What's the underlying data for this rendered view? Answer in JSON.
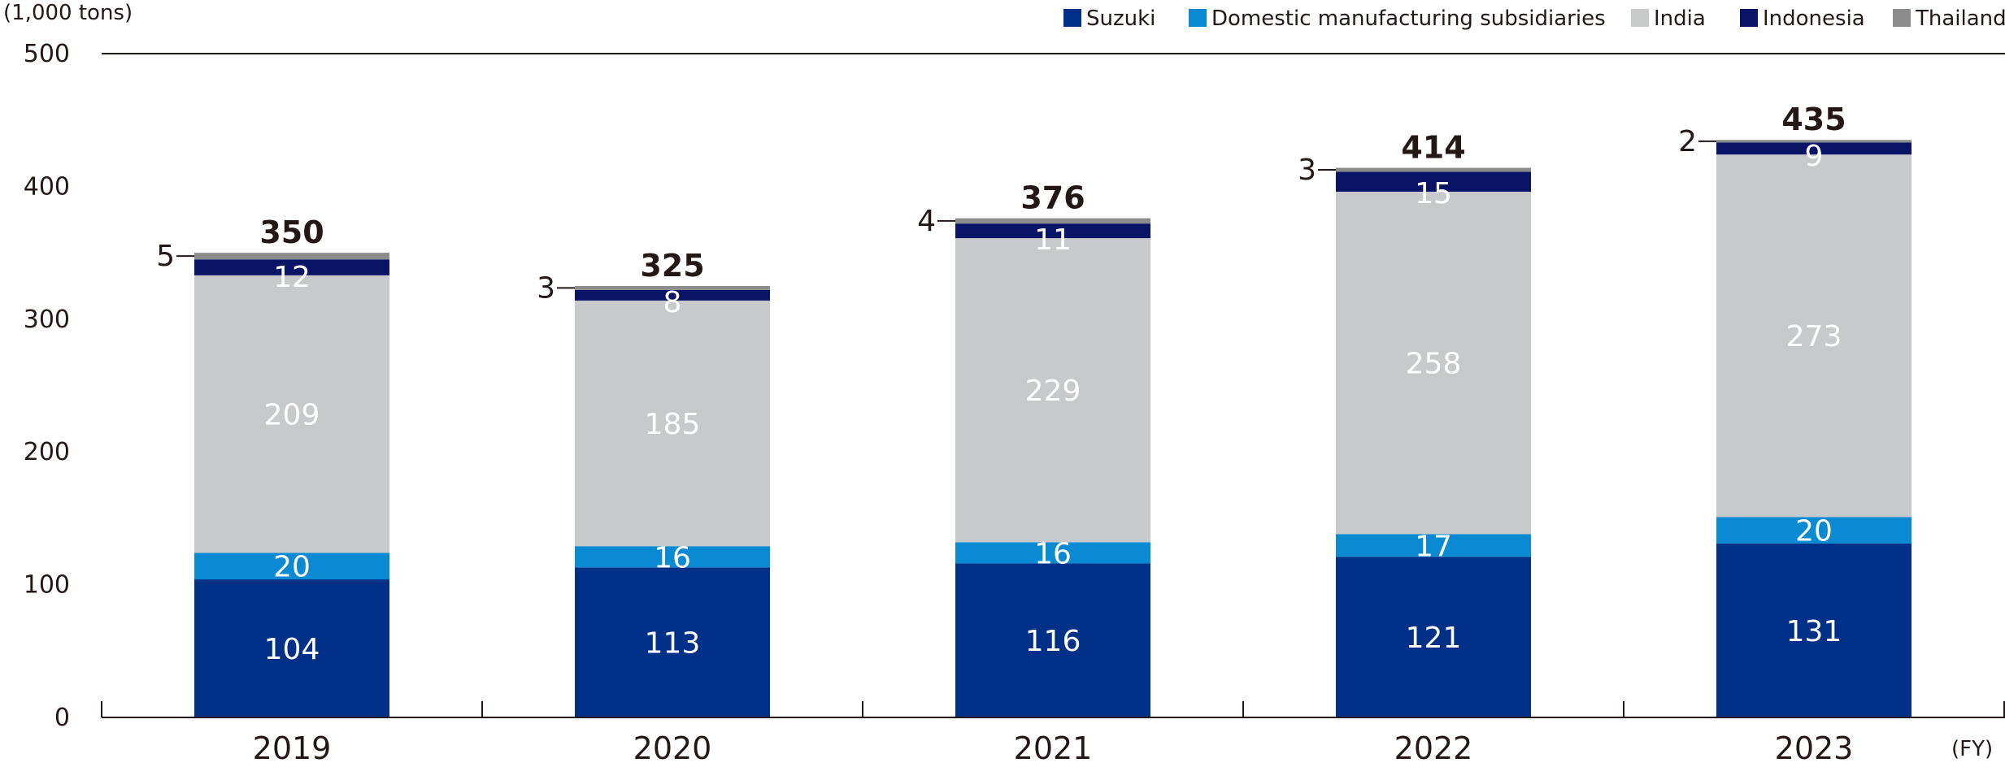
{
  "chart_data": {
    "type": "bar",
    "stacked": true,
    "unit_label": "(1,000 tons)",
    "x_unit_label": "(FY)",
    "categories": [
      "2019",
      "2020",
      "2021",
      "2022",
      "2023"
    ],
    "series": [
      {
        "name": "Suzuki",
        "color": "#003087",
        "label_color": "#ffffff",
        "values": [
          104,
          113,
          116,
          121,
          131
        ]
      },
      {
        "name": "Domestic manufacturing subsidiaries",
        "color": "#0a8ad2",
        "label_color": "#ffffff",
        "values": [
          20,
          16,
          16,
          17,
          20
        ]
      },
      {
        "name": "India",
        "color": "#c8c9ca",
        "label_color": "#ffffff",
        "values": [
          209,
          185,
          229,
          258,
          273
        ]
      },
      {
        "name": "Indonesia",
        "color": "#0a1467",
        "label_color": "#ffffff",
        "values": [
          12,
          8,
          11,
          15,
          9
        ]
      },
      {
        "name": "Thailand",
        "color": "#8c8c8c",
        "label_color": "#231815",
        "values": [
          5,
          3,
          4,
          3,
          2
        ]
      }
    ],
    "totals": [
      350,
      325,
      376,
      414,
      435
    ],
    "ylim": [
      0,
      500
    ],
    "yticks": [
      0,
      100,
      200,
      300,
      400,
      500
    ],
    "legend_position": "top-right",
    "grid": false
  }
}
